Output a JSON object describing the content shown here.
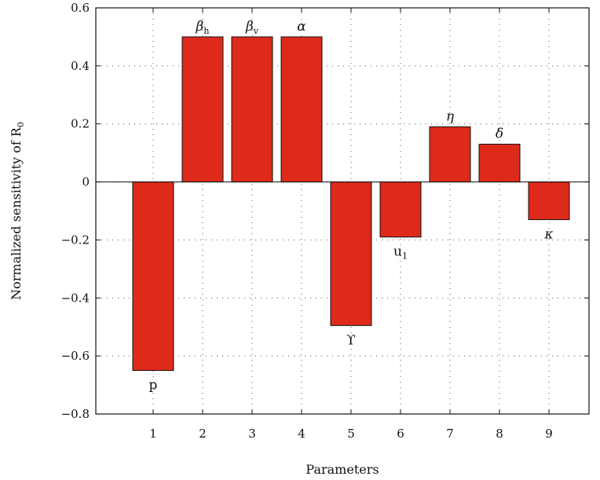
{
  "chart_data": {
    "type": "bar",
    "title": "",
    "xlabel": "Parameters",
    "ylabel": {
      "main": "Normalized sensitivity of R",
      "sub": "0"
    },
    "categories": [
      "1",
      "2",
      "3",
      "4",
      "5",
      "6",
      "7",
      "8",
      "9"
    ],
    "values": [
      -0.65,
      0.5,
      0.5,
      0.5,
      -0.495,
      -0.19,
      0.19,
      0.13,
      -0.13
    ],
    "bar_labels": [
      {
        "main": "p",
        "sub": "",
        "italic": false
      },
      {
        "main": "β",
        "sub": "h",
        "italic": true
      },
      {
        "main": "β",
        "sub": "v",
        "italic": true
      },
      {
        "main": "α",
        "sub": "",
        "italic": true
      },
      {
        "main": "ϒ",
        "sub": "",
        "italic": false
      },
      {
        "main": "u",
        "sub": "1",
        "italic": false
      },
      {
        "main": "η",
        "sub": "",
        "italic": true
      },
      {
        "main": "δ",
        "sub": "",
        "italic": true
      },
      {
        "main": "κ",
        "sub": "",
        "italic": true
      }
    ],
    "ylim": [
      -0.8,
      0.6
    ],
    "yticks": [
      0.6,
      0.4,
      0.2,
      0,
      -0.2,
      -0.4,
      -0.6,
      -0.8
    ],
    "ytick_labels": [
      "0.6",
      "0.4",
      "0.2",
      "0",
      "−0.2",
      "−0.4",
      "−0.6",
      "−0.8"
    ],
    "grid": true,
    "bar_color": "#dd2a1b"
  }
}
